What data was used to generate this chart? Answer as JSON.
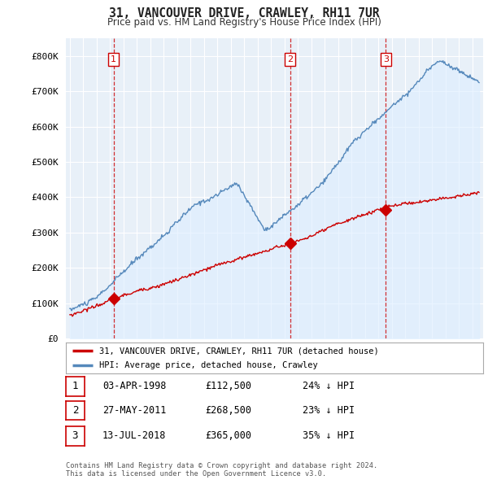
{
  "title": "31, VANCOUVER DRIVE, CRAWLEY, RH11 7UR",
  "subtitle": "Price paid vs. HM Land Registry's House Price Index (HPI)",
  "ylim": [
    0,
    850000
  ],
  "yticks": [
    0,
    100000,
    200000,
    300000,
    400000,
    500000,
    600000,
    700000,
    800000
  ],
  "ytick_labels": [
    "£0",
    "£100K",
    "£200K",
    "£300K",
    "£400K",
    "£500K",
    "£600K",
    "£700K",
    "£800K"
  ],
  "sale_color": "#cc0000",
  "hpi_color": "#5588bb",
  "hpi_fill_color": "#ddeeff",
  "vline_color": "#cc0000",
  "purchase_dates_num": [
    1998.25,
    2011.42,
    2018.54
  ],
  "purchase_prices": [
    112500,
    268500,
    365000
  ],
  "purchase_labels": [
    "1",
    "2",
    "3"
  ],
  "legend_sale_label": "31, VANCOUVER DRIVE, CRAWLEY, RH11 7UR (detached house)",
  "legend_hpi_label": "HPI: Average price, detached house, Crawley",
  "table_rows": [
    {
      "num": "1",
      "date": "03-APR-1998",
      "price": "£112,500",
      "hpi": "24% ↓ HPI"
    },
    {
      "num": "2",
      "date": "27-MAY-2011",
      "price": "£268,500",
      "hpi": "23% ↓ HPI"
    },
    {
      "num": "3",
      "date": "13-JUL-2018",
      "price": "£365,000",
      "hpi": "35% ↓ HPI"
    }
  ],
  "footer": "Contains HM Land Registry data © Crown copyright and database right 2024.\nThis data is licensed under the Open Government Licence v3.0.",
  "background_color": "#ffffff",
  "plot_bg_color": "#e8f0f8",
  "grid_color": "#ffffff"
}
